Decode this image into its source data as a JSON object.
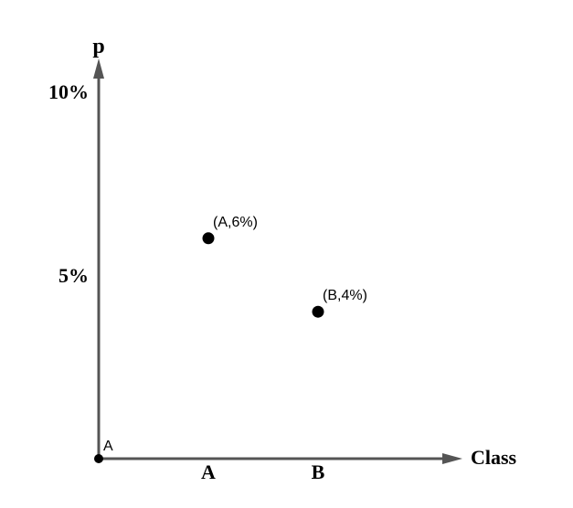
{
  "chart_data": {
    "type": "scatter",
    "xlabel": "Class",
    "ylabel": "p",
    "categories": [
      "A",
      "B"
    ],
    "yticks": [
      {
        "value": 10,
        "label": "10%"
      },
      {
        "value": 5,
        "label": "5%"
      }
    ],
    "ylim": [
      0,
      10
    ],
    "origin_label": "A",
    "points": [
      {
        "x": "A",
        "y": 6,
        "label": "(A,6%)"
      },
      {
        "x": "B",
        "y": 4,
        "label": "(B,4%)"
      }
    ],
    "grid": false,
    "colors": {
      "axis": "#555555",
      "point": "#000000",
      "text": "#000000"
    }
  }
}
